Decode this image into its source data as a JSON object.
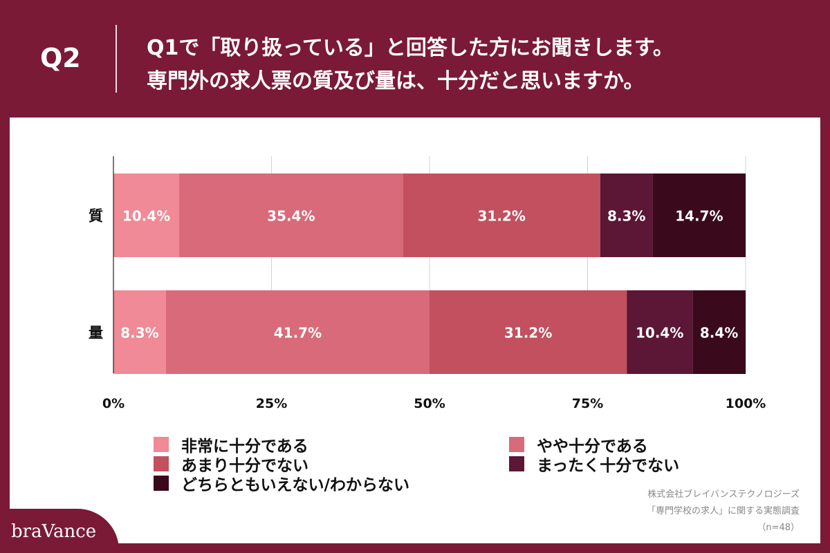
{
  "header": {
    "q_label": "Q2",
    "title_line_1": "Q1で「取り扱っている」と回答した方にお聞きします。",
    "title_line_2": "専門外の求人票の質及び量は、十分だと思いますか。"
  },
  "chart_data": {
    "type": "bar",
    "orientation": "horizontal",
    "stacked": true,
    "categories": [
      "質",
      "量"
    ],
    "series": [
      {
        "name": "非常に十分である",
        "color": "#f08a96",
        "values": [
          10.4,
          8.3
        ],
        "labels": [
          "10.4%",
          "8.3%"
        ]
      },
      {
        "name": "やや十分である",
        "color": "#d96a79",
        "values": [
          35.4,
          41.7
        ],
        "labels": [
          "35.4%",
          "41.7%"
        ]
      },
      {
        "name": "あまり十分でない",
        "color": "#c2505f",
        "values": [
          31.2,
          31.2
        ],
        "labels": [
          "31.2%",
          "31.2%"
        ]
      },
      {
        "name": "まったく十分でない",
        "color": "#5c1636",
        "values": [
          8.3,
          10.4
        ],
        "labels": [
          "8.3%",
          "10.4%"
        ]
      },
      {
        "name": "どちらともいえない/わからない",
        "color": "#3a0a1c",
        "values": [
          14.7,
          8.4
        ],
        "labels": [
          "14.7%",
          "8.4%"
        ]
      }
    ],
    "xlim": [
      0,
      100
    ],
    "x_ticks": [
      "0%",
      "25%",
      "50%",
      "75%",
      "100%"
    ],
    "grid": true,
    "legend_position": "bottom"
  },
  "source": {
    "line_1": "株式会社ブレイバンステクノロジーズ",
    "line_2": "「専門学校の求人」に関する実態調査",
    "line_3": "（n=48）"
  },
  "brand": {
    "logo_text": "braVance"
  }
}
